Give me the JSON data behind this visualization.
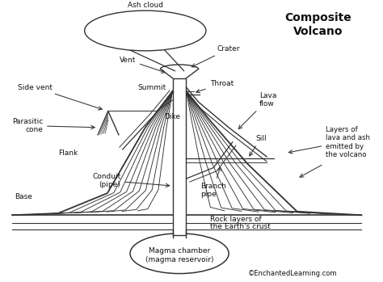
{
  "background_color": "#ffffff",
  "line_color": "#333333",
  "text_color": "#111111",
  "title": "Composite\nVolcano",
  "labels": {
    "ash_cloud": "Ash cloud",
    "crater": "Crater",
    "vent": "Vent",
    "side_vent": "Side vent",
    "summit": "Summit",
    "throat": "Throat",
    "dike": "Dike",
    "parasitic_cone": "Parasitic\ncone",
    "lava_flow": "Lava\nflow",
    "flank": "Flank",
    "base": "Base",
    "conduit": "Conduit\n(pipe)",
    "branch_pipe": "Branch\npipe",
    "sill": "Sill",
    "layers": "Layers of\nlava and ash\nemitted by\nthe volcano",
    "rock_layers1": "Rock layers of",
    "rock_layers2": "the Earth's crust",
    "magma_chamber": "Magma chamber\n(magma reservoir)",
    "copyright": "©EnchantedLearning.com"
  },
  "fig_width": 4.74,
  "fig_height": 3.49,
  "dpi": 100
}
